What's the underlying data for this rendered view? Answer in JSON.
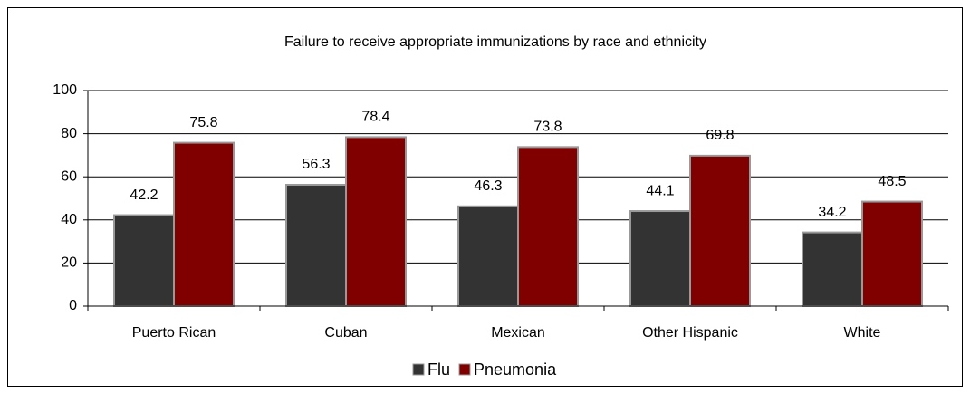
{
  "chart_data": {
    "type": "bar",
    "title": "Failure to receive appropriate immunizations by race and ethnicity",
    "categories": [
      "Puerto Rican",
      "Cuban",
      "Mexican",
      "Other Hispanic",
      "White"
    ],
    "series": [
      {
        "name": "Flu",
        "color": "#333333",
        "values": [
          42.2,
          56.3,
          46.3,
          44.1,
          34.2
        ]
      },
      {
        "name": "Pneumonia",
        "color": "#800000",
        "values": [
          75.8,
          78.4,
          73.8,
          69.8,
          48.5
        ]
      }
    ],
    "ylim": [
      0,
      100
    ],
    "yticks": [
      0,
      20,
      40,
      60,
      80,
      100
    ],
    "grid": true,
    "legend": "bottom"
  }
}
